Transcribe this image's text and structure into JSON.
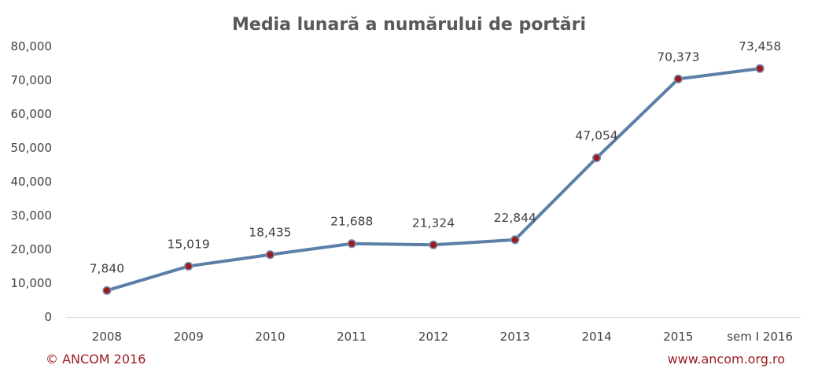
{
  "chart_data": {
    "type": "line",
    "title": "Media lunară a numărului de portări",
    "categories": [
      "2008",
      "2009",
      "2010",
      "2011",
      "2012",
      "2013",
      "2014",
      "2015",
      "sem I 2016"
    ],
    "series": [
      {
        "values": [
          7840,
          15019,
          18435,
          21688,
          21324,
          22844,
          47054,
          70373,
          73458
        ]
      }
    ],
    "value_labels": [
      "7,840",
      "15,019",
      "18,435",
      "21,688",
      "21,324",
      "22,844",
      "47,054",
      "70,373",
      "73,458"
    ],
    "ylim": [
      0,
      80000
    ],
    "yticks": [
      0,
      10000,
      20000,
      30000,
      40000,
      50000,
      60000,
      70000,
      80000
    ],
    "ytick_labels": [
      "0",
      "10,000",
      "20,000",
      "30,000",
      "40,000",
      "50,000",
      "60,000",
      "70,000",
      "80,000"
    ],
    "grid": false,
    "line_color": "#5b7fa6",
    "marker_color": "#9b1b1f"
  },
  "footer": {
    "copyright": "© ANCOM 2016",
    "website": "www.ancom.org.ro"
  }
}
